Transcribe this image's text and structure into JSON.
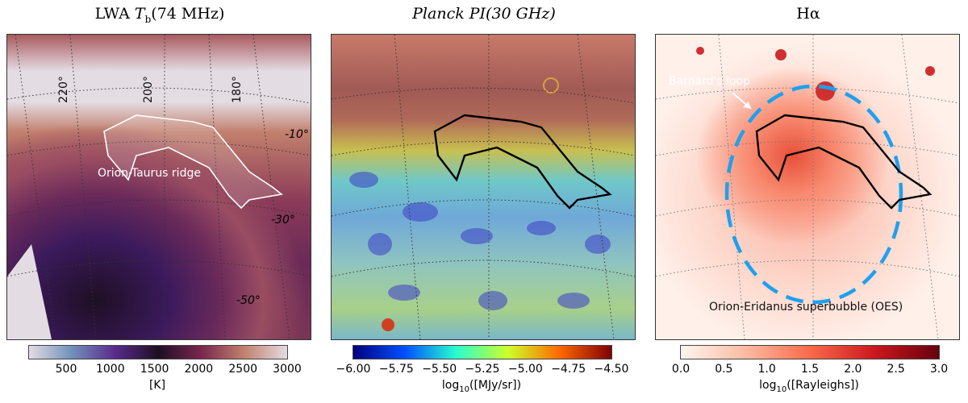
{
  "chart_data": [
    {
      "type": "heatmap",
      "title_prefix": "LWA ",
      "title_var": "T",
      "title_sub": "b",
      "title_suffix": "(74 MHz)",
      "colorbar": {
        "label": "[K]",
        "ticks": [
          500,
          1000,
          1500,
          2000,
          2500,
          3000
        ],
        "range": [
          80,
          3000
        ],
        "colors": [
          "#e4dce3",
          "#6f90bb",
          "#5a2a8c",
          "#1e0f24",
          "#7a2650",
          "#c2806d",
          "#e4dce3"
        ]
      },
      "annotations": {
        "region": "Orion-Taurus ridge",
        "lon_labels": [
          "220°",
          "200°",
          "180°"
        ],
        "lat_labels": [
          "-10°",
          "-30°",
          "-50°"
        ]
      }
    },
    {
      "type": "heatmap",
      "title": "Planck PI(30 GHz)",
      "colorbar": {
        "label": "log10([MJy/sr])",
        "ticks": [
          -6.0,
          -5.75,
          -5.5,
          -5.25,
          -5.0,
          -4.75,
          -4.5
        ],
        "tick_labels": [
          "−6.00",
          "−5.75",
          "−5.50",
          "−5.25",
          "−5.00",
          "−4.75",
          "−4.50"
        ],
        "range": [
          -6.0,
          -4.5
        ],
        "colors": [
          "#00007f",
          "#0050ff",
          "#29ffce",
          "#ceff29",
          "#ff6800",
          "#7f0000"
        ]
      }
    },
    {
      "type": "heatmap",
      "title": "Hα",
      "colorbar": {
        "label": "log10([Rayleighs])",
        "ticks": [
          0.0,
          0.5,
          1.0,
          1.5,
          2.0,
          2.5,
          3.0
        ],
        "tick_labels": [
          "0.0",
          "0.5",
          "1.0",
          "1.5",
          "2.0",
          "2.5",
          "3.0"
        ],
        "range": [
          0,
          3
        ],
        "colors": [
          "#fff5f0",
          "#fcbba1",
          "#fb6a4a",
          "#cb181d",
          "#67000d"
        ]
      },
      "annotations": {
        "loop": "Barnard's loop",
        "bubble": "Orion-Eridanus superbubble (OES)"
      }
    }
  ]
}
